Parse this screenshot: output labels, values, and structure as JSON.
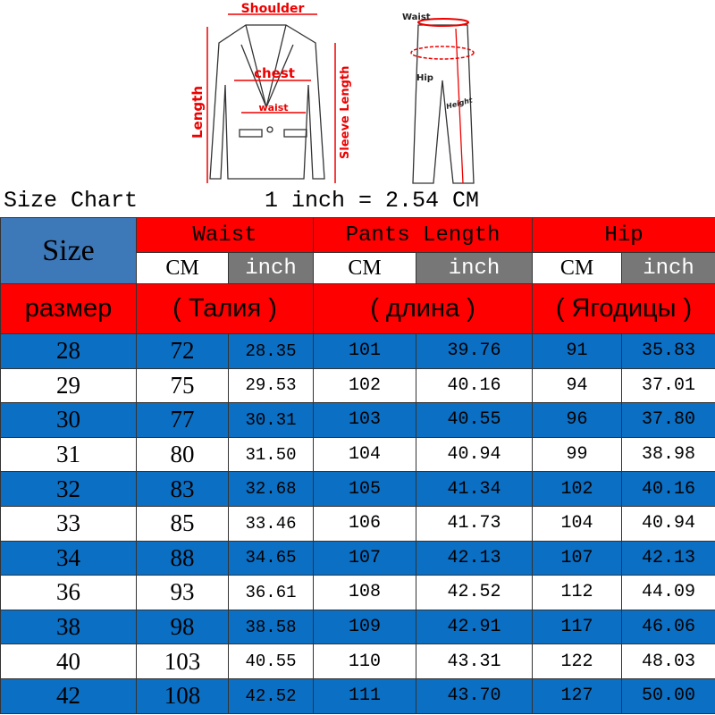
{
  "figure": {
    "jacket_labels": {
      "shoulder": "Shoulder",
      "chest": "chest",
      "waist": "waist",
      "length": "Length",
      "sleeve": "Sleeve Length"
    },
    "pants_labels": {
      "waist": "Waist",
      "hip": "Hip",
      "height": "Height"
    }
  },
  "caption": {
    "title": "Size Chart",
    "conversion": "1 inch = 2.54 CM"
  },
  "header": {
    "size": "Size",
    "groups": [
      "Waist",
      "Pants Length",
      "Hip"
    ],
    "units": [
      "CM",
      "inch",
      "CM",
      "inch",
      "CM",
      "inch"
    ],
    "russian": [
      "размер",
      "( Талия )",
      "( длина )",
      "( Ягодицы )"
    ]
  },
  "colors": {
    "red": "#ff0000",
    "blue": "#0b6fc4",
    "size_header": "#3d78b9",
    "inch_header": "#777777"
  },
  "rows": [
    [
      "28",
      "72",
      "28.35",
      "101",
      "39.76",
      "91",
      "35.83"
    ],
    [
      "29",
      "75",
      "29.53",
      "102",
      "40.16",
      "94",
      "37.01"
    ],
    [
      "30",
      "77",
      "30.31",
      "103",
      "40.55",
      "96",
      "37.80"
    ],
    [
      "31",
      "80",
      "31.50",
      "104",
      "40.94",
      "99",
      "38.98"
    ],
    [
      "32",
      "83",
      "32.68",
      "105",
      "41.34",
      "102",
      "40.16"
    ],
    [
      "33",
      "85",
      "33.46",
      "106",
      "41.73",
      "104",
      "40.94"
    ],
    [
      "34",
      "88",
      "34.65",
      "107",
      "42.13",
      "107",
      "42.13"
    ],
    [
      "36",
      "93",
      "36.61",
      "108",
      "42.52",
      "112",
      "44.09"
    ],
    [
      "38",
      "98",
      "38.58",
      "109",
      "42.91",
      "117",
      "46.06"
    ],
    [
      "40",
      "103",
      "40.55",
      "110",
      "43.31",
      "122",
      "48.03"
    ],
    [
      "42",
      "108",
      "42.52",
      "111",
      "43.70",
      "127",
      "50.00"
    ]
  ]
}
